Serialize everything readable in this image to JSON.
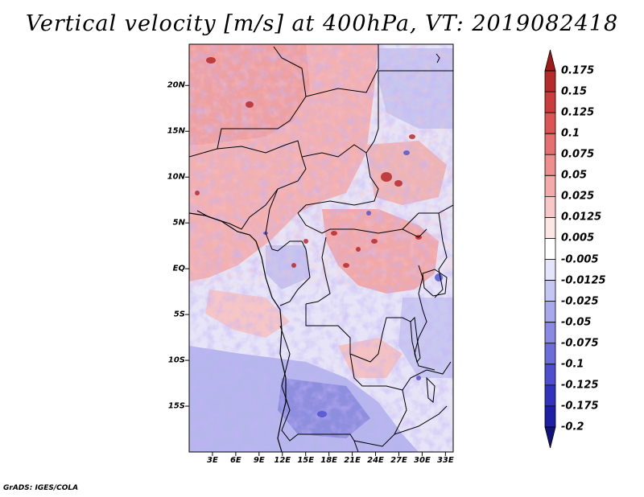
{
  "title": "Vertical velocity [m/s] at 400hPa, VT: 2019082418",
  "credit": "GrADS: IGES/COLA",
  "map": {
    "lat_ticks": [
      20,
      15,
      10,
      5,
      0,
      -5,
      -10,
      -15
    ],
    "lat_labels": [
      "20N",
      "15N",
      "10N",
      "5N",
      "EQ",
      "5S",
      "10S",
      "15S"
    ],
    "lon_ticks": [
      3,
      6,
      9,
      12,
      15,
      18,
      21,
      24,
      27,
      30,
      33
    ],
    "lon_labels": [
      "3E",
      "6E",
      "9E",
      "12E",
      "15E",
      "18E",
      "21E",
      "24E",
      "27E",
      "30E",
      "33E"
    ],
    "lat_range": [
      -20,
      24.5
    ],
    "lon_range": [
      0,
      34
    ]
  },
  "colorbar": {
    "levels": [
      "0.175",
      "0.15",
      "0.125",
      "0.1",
      "0.075",
      "0.05",
      "0.025",
      "0.0125",
      "0.005",
      "-0.005",
      "-0.0125",
      "-0.025",
      "-0.05",
      "-0.075",
      "-0.1",
      "-0.125",
      "-0.175",
      "-0.2"
    ],
    "colors": [
      "#a01818",
      "#b82a2a",
      "#cc3c3c",
      "#dc5454",
      "#e67070",
      "#ee8e8e",
      "#f4aaaa",
      "#f8c8c8",
      "#fce6e6",
      "#ffffff",
      "#e4e4fa",
      "#c6c6f4",
      "#a8a8ec",
      "#8a8ae4",
      "#6c6cda",
      "#4e4ece",
      "#3232be",
      "#1e1ea8",
      "#12127c"
    ]
  }
}
